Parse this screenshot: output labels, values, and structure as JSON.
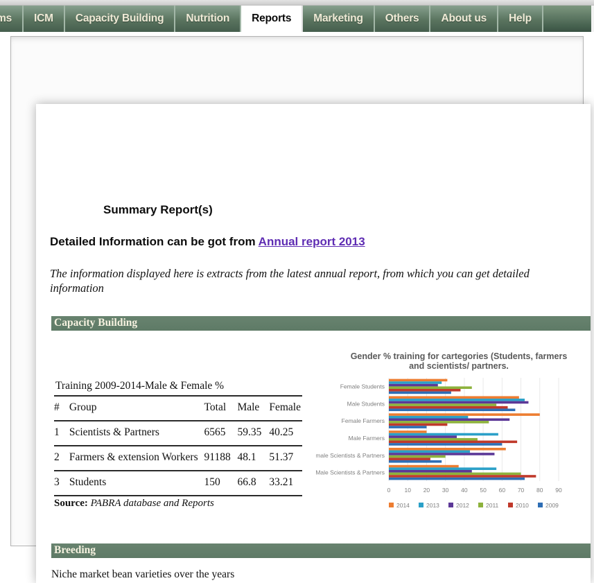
{
  "nav": {
    "tabs": [
      {
        "label": "ms",
        "active": false
      },
      {
        "label": "ICM",
        "active": false
      },
      {
        "label": "Capacity Building",
        "active": false
      },
      {
        "label": "Nutrition",
        "active": false
      },
      {
        "label": "Reports",
        "active": true
      },
      {
        "label": "Marketing",
        "active": false
      },
      {
        "label": "Others",
        "active": false
      },
      {
        "label": "About us",
        "active": false
      },
      {
        "label": "Help",
        "active": false
      }
    ]
  },
  "page": {
    "heading": "Summary Report(s)",
    "detail_prefix": "Detailed Information can be got from ",
    "detail_link": "Annual report 2013",
    "intro_italic": "The information displayed here is extracts from the latest annual report, from which you can get detailed information",
    "section_capacity": "Capacity Building",
    "section_breeding": "Breeding",
    "breeding_text": "Niche market bean varieties over the years"
  },
  "training_table": {
    "caption": "Training 2009-2014-Male & Female %",
    "headers": [
      "#",
      "Group",
      "Total",
      "Male",
      "Female"
    ],
    "rows": [
      [
        "1",
        "Scientists & Partners",
        "6565",
        "59.35",
        "40.25"
      ],
      [
        "2",
        "Farmers & extension Workers",
        "91188",
        "48.1",
        "51.37"
      ],
      [
        "3",
        "Students",
        "150",
        "66.8",
        "33.21"
      ]
    ],
    "source_label": "Source:",
    "source_text": "PABRA database and Reports"
  },
  "chart_data": {
    "type": "bar",
    "orientation": "horizontal",
    "title": "Gender % training for cartegories (Students, farmers and scientists/ partners.",
    "categories": [
      "Female Students",
      "Male Students",
      "Female Farmers",
      "Male Farmers",
      "Female Scientists & Partners",
      "Male Scientists & Partners"
    ],
    "series": [
      {
        "name": "2014",
        "color": "#ED7D31",
        "values": [
          31,
          69,
          80,
          20,
          62,
          37
        ]
      },
      {
        "name": "2013",
        "color": "#2BA0C8",
        "values": [
          28,
          72,
          42,
          58,
          43,
          57
        ]
      },
      {
        "name": "2012",
        "color": "#5C3897",
        "values": [
          26,
          74,
          64,
          36,
          56,
          44
        ]
      },
      {
        "name": "2011",
        "color": "#8DB23C",
        "values": [
          44,
          57,
          53,
          47,
          30,
          70
        ]
      },
      {
        "name": "2010",
        "color": "#C0392B",
        "values": [
          38,
          63,
          31,
          68,
          22,
          78
        ]
      },
      {
        "name": "2009",
        "color": "#2E6EB5",
        "values": [
          33,
          67,
          20,
          60,
          28,
          72
        ]
      }
    ],
    "xlim": [
      0,
      90
    ],
    "xticks": [
      0,
      10,
      20,
      30,
      40,
      50,
      60,
      70,
      80,
      90
    ],
    "grid": "vertical",
    "legend_position": "bottom"
  },
  "colors": {
    "nav_light": "#7d977f",
    "nav_dark": "#45604e",
    "section_green": "#5e7a66",
    "link_purple": "#5f2db3",
    "chart_text_gray": "#7f7f7f",
    "chart_title_gray": "#595959",
    "gridline": "#e9e9e9"
  }
}
